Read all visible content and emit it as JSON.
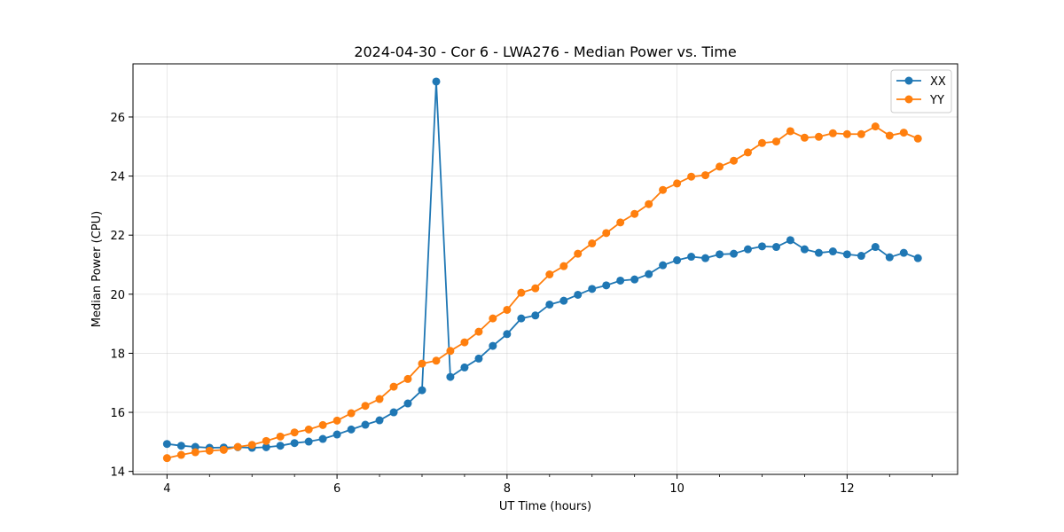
{
  "chart_data": {
    "type": "line",
    "title": "2024-04-30 - Cor 6 - LWA276 - Median Power vs. Time",
    "xlabel": "UT Time (hours)",
    "ylabel": "Median Power (CPU)",
    "xlim": [
      3.6,
      13.3
    ],
    "ylim": [
      13.9,
      27.8
    ],
    "xticks": [
      4,
      6,
      8,
      10,
      12
    ],
    "xtick_labels": [
      "4",
      "6",
      "8",
      "10",
      "12"
    ],
    "yticks": [
      14,
      16,
      18,
      20,
      22,
      24,
      26
    ],
    "ytick_labels": [
      "14",
      "16",
      "18",
      "20",
      "22",
      "24",
      "26"
    ],
    "grid": true,
    "legend_position": "top-right",
    "x": [
      4.0,
      4.167,
      4.333,
      4.5,
      4.667,
      4.833,
      5.0,
      5.167,
      5.333,
      5.5,
      5.667,
      5.833,
      6.0,
      6.167,
      6.333,
      6.5,
      6.667,
      6.833,
      7.0,
      7.167,
      7.333,
      7.5,
      7.667,
      7.833,
      8.0,
      8.167,
      8.333,
      8.5,
      8.667,
      8.833,
      9.0,
      9.167,
      9.333,
      9.5,
      9.667,
      9.833,
      10.0,
      10.167,
      10.333,
      10.5,
      10.667,
      10.833,
      11.0,
      11.167,
      11.333,
      11.5,
      11.667,
      11.833,
      12.0,
      12.167,
      12.333,
      12.5,
      12.667,
      12.833
    ],
    "series": [
      {
        "name": "XX",
        "color": "#1f77b4",
        "values": [
          14.93,
          14.87,
          14.83,
          14.8,
          14.81,
          14.82,
          14.8,
          14.82,
          14.87,
          14.96,
          15.01,
          15.1,
          15.25,
          15.42,
          15.58,
          15.73,
          16.0,
          16.3,
          16.75,
          27.2,
          17.2,
          17.52,
          17.82,
          18.25,
          18.65,
          19.18,
          19.28,
          19.65,
          19.78,
          19.98,
          20.18,
          20.3,
          20.46,
          20.5,
          20.68,
          20.98,
          21.15,
          21.27,
          21.22,
          21.35,
          21.37,
          21.52,
          21.62,
          21.6,
          21.83,
          21.52,
          21.4,
          21.45,
          21.35,
          21.3,
          21.6,
          21.25,
          21.4,
          21.22
        ]
      },
      {
        "name": "YY",
        "color": "#ff7f0e",
        "values": [
          14.45,
          14.56,
          14.65,
          14.7,
          14.73,
          14.83,
          14.9,
          15.03,
          15.18,
          15.32,
          15.42,
          15.57,
          15.72,
          15.97,
          16.22,
          16.45,
          16.87,
          17.13,
          17.65,
          17.75,
          18.08,
          18.37,
          18.73,
          19.18,
          19.47,
          20.05,
          20.2,
          20.67,
          20.95,
          21.37,
          21.72,
          22.07,
          22.43,
          22.72,
          23.05,
          23.53,
          23.75,
          23.98,
          24.03,
          24.32,
          24.52,
          24.8,
          25.12,
          25.17,
          25.52,
          25.3,
          25.33,
          25.45,
          25.42,
          25.42,
          25.68,
          25.37,
          25.47,
          25.27
        ]
      }
    ]
  }
}
